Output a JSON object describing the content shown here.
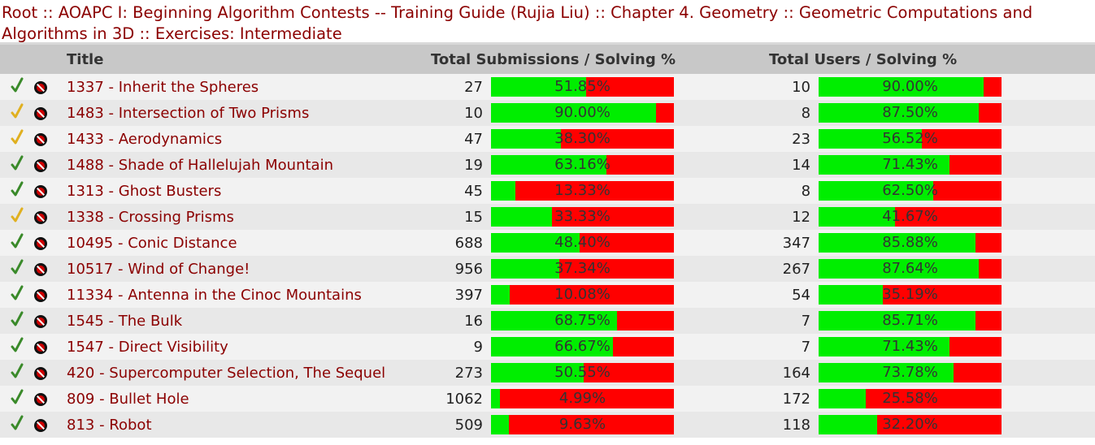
{
  "breadcrumb": {
    "items": [
      "Root",
      "AOAPC I: Beginning Algorithm Contests -- Training Guide (Rujia Liu)",
      "Chapter 4. Geometry",
      "Geometric Computations and Algorithms in 3D",
      "Exercises: Intermediate"
    ],
    "separator": "::"
  },
  "table": {
    "headers": {
      "title": "Title",
      "submissions": "Total Submissions / Solving %",
      "users": "Total Users / Solving %"
    },
    "colors": {
      "solved": "#00ee00",
      "unsolved": "#ff0000",
      "link": "#8b0000"
    },
    "rows": [
      {
        "status": "solved",
        "title": "1337 - Inherit the Spheres",
        "subs": "27",
        "subs_pct": "51.85%",
        "subs_frac": 0.5185,
        "users": "10",
        "users_pct": "90.00%",
        "users_frac": 0.9
      },
      {
        "status": "tried",
        "title": "1483 - Intersection of Two Prisms",
        "subs": "10",
        "subs_pct": "90.00%",
        "subs_frac": 0.9,
        "users": "8",
        "users_pct": "87.50%",
        "users_frac": 0.875
      },
      {
        "status": "tried",
        "title": "1433 - Aerodynamics",
        "subs": "47",
        "subs_pct": "38.30%",
        "subs_frac": 0.383,
        "users": "23",
        "users_pct": "56.52%",
        "users_frac": 0.5652
      },
      {
        "status": "solved",
        "title": "1488 - Shade of Hallelujah Mountain",
        "subs": "19",
        "subs_pct": "63.16%",
        "subs_frac": 0.6316,
        "users": "14",
        "users_pct": "71.43%",
        "users_frac": 0.7143
      },
      {
        "status": "solved",
        "title": "1313 - Ghost Busters",
        "subs": "45",
        "subs_pct": "13.33%",
        "subs_frac": 0.1333,
        "users": "8",
        "users_pct": "62.50%",
        "users_frac": 0.625
      },
      {
        "status": "tried",
        "title": "1338 - Crossing Prisms",
        "subs": "15",
        "subs_pct": "33.33%",
        "subs_frac": 0.3333,
        "users": "12",
        "users_pct": "41.67%",
        "users_frac": 0.4167
      },
      {
        "status": "solved",
        "title": "10495 - Conic Distance",
        "subs": "688",
        "subs_pct": "48.40%",
        "subs_frac": 0.484,
        "users": "347",
        "users_pct": "85.88%",
        "users_frac": 0.8588
      },
      {
        "status": "solved",
        "title": "10517 - Wind of Change!",
        "subs": "956",
        "subs_pct": "37.34%",
        "subs_frac": 0.3734,
        "users": "267",
        "users_pct": "87.64%",
        "users_frac": 0.8764
      },
      {
        "status": "solved",
        "title": "11334 - Antenna in the Cinoc Mountains",
        "subs": "397",
        "subs_pct": "10.08%",
        "subs_frac": 0.1008,
        "users": "54",
        "users_pct": "35.19%",
        "users_frac": 0.3519
      },
      {
        "status": "solved",
        "title": "1545 - The Bulk",
        "subs": "16",
        "subs_pct": "68.75%",
        "subs_frac": 0.6875,
        "users": "7",
        "users_pct": "85.71%",
        "users_frac": 0.8571
      },
      {
        "status": "solved",
        "title": "1547 - Direct Visibility",
        "subs": "9",
        "subs_pct": "66.67%",
        "subs_frac": 0.6667,
        "users": "7",
        "users_pct": "71.43%",
        "users_frac": 0.7143
      },
      {
        "status": "solved",
        "title": "420 - Supercomputer Selection, The Sequel",
        "subs": "273",
        "subs_pct": "50.55%",
        "subs_frac": 0.5055,
        "users": "164",
        "users_pct": "73.78%",
        "users_frac": 0.7378
      },
      {
        "status": "solved",
        "title": "809 - Bullet Hole",
        "subs": "1062",
        "subs_pct": "4.99%",
        "subs_frac": 0.0499,
        "users": "172",
        "users_pct": "25.58%",
        "users_frac": 0.2558
      },
      {
        "status": "solved",
        "title": "813 - Robot",
        "subs": "509",
        "subs_pct": "9.63%",
        "subs_frac": 0.0963,
        "users": "118",
        "users_pct": "32.20%",
        "users_frac": 0.322
      }
    ]
  }
}
